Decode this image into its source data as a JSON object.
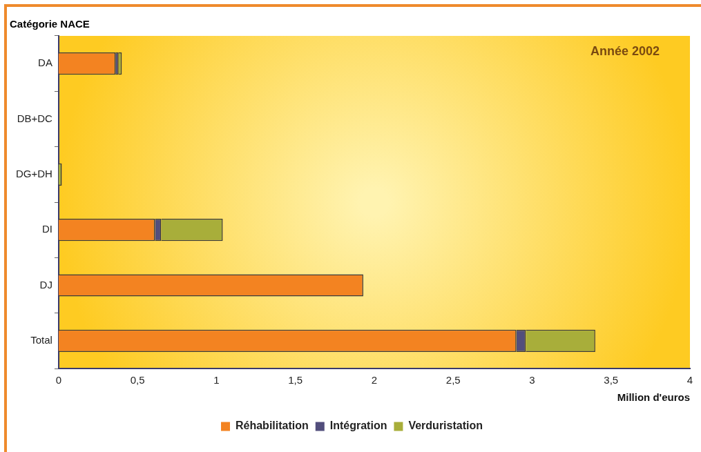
{
  "chart_data": {
    "type": "bar",
    "orientation": "horizontal",
    "stacked": true,
    "ylabel": "Catégorie NACE",
    "xlabel": "Million d'euros",
    "annotations": [
      "Année 2002"
    ],
    "categories": [
      "DA",
      "DB+DC",
      "DG+DH",
      "DI",
      "DJ",
      "Total"
    ],
    "series": [
      {
        "name": "Réhabilitation",
        "color": "#f38321",
        "values": [
          0.36,
          null,
          null,
          0.61,
          1.93,
          2.9
        ]
      },
      {
        "name": "Intégration",
        "color": "#524e7c",
        "values": [
          0.02,
          null,
          null,
          0.04,
          null,
          0.06
        ]
      },
      {
        "name": "Verduristation",
        "color": "#a8ae3a",
        "values": [
          0.02,
          null,
          0.02,
          0.39,
          null,
          0.44
        ]
      }
    ],
    "xlim": [
      0,
      4
    ],
    "xticks": [
      0,
      {
        "value": 0.5,
        "label": "0,5"
      },
      1,
      {
        "value": 1.5,
        "label": "1,5"
      },
      2,
      {
        "value": 2.5,
        "label": "2,5"
      },
      3,
      {
        "value": 3.5,
        "label": "3,5"
      },
      4
    ],
    "grid": false,
    "legend": "bottom"
  }
}
